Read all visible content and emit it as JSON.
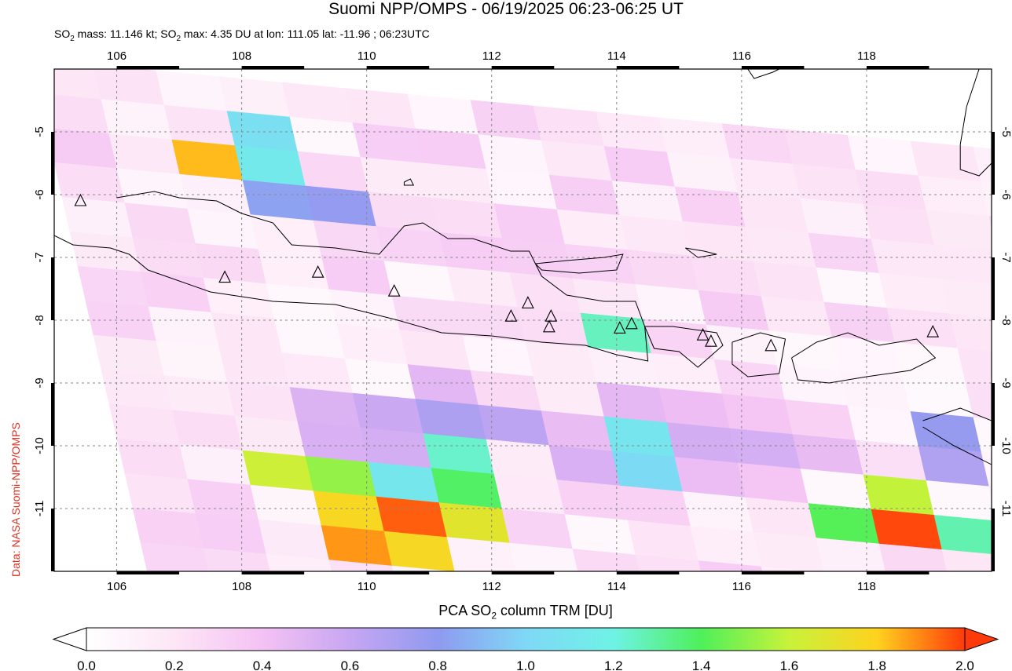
{
  "title": "Suomi NPP/OMPS - 06/19/2025 06:23-06:25 UT",
  "subtitle": {
    "pre": "SO",
    "sub1": "2",
    "mid": " mass: 11.146 kt; SO",
    "sub2": "2",
    "post": " max: 4.35 DU at lon: 111.05 lat: -11.96 ; 06:23UTC"
  },
  "side_label": "Data: NASA Suomi-NPP/OMPS",
  "colorbar": {
    "title_pre": "PCA SO",
    "title_sub": "2",
    "title_post": " column TRM [DU]",
    "min": 0.0,
    "max": 2.0,
    "tick_labels": [
      "0.0",
      "0.2",
      "0.4",
      "0.6",
      "0.8",
      "1.0",
      "1.2",
      "1.4",
      "1.6",
      "1.8",
      "2.0"
    ],
    "colors": [
      "#ffffff",
      "#fde6f6",
      "#f4c2f4",
      "#c7a6f2",
      "#8f9af0",
      "#7fd8f6",
      "#6ff2e6",
      "#4ef05a",
      "#c8f23a",
      "#ffd21e",
      "#ff3a0a"
    ]
  },
  "map": {
    "lon_range": [
      105.0,
      120.0
    ],
    "lat_range": [
      -12.0,
      -4.0
    ],
    "lon_ticks": [
      "106",
      "108",
      "110",
      "112",
      "114",
      "116",
      "118"
    ],
    "lat_ticks": [
      "-5",
      "-6",
      "-7",
      "-8",
      "-9",
      "-10",
      "-11"
    ],
    "coastline_color": "#000000",
    "grid_color": "#888888",
    "volcanoes": [
      {
        "lon": 105.42,
        "lat": -6.1
      },
      {
        "lon": 107.73,
        "lat": -7.32
      },
      {
        "lon": 109.22,
        "lat": -7.24
      },
      {
        "lon": 110.44,
        "lat": -7.54
      },
      {
        "lon": 112.31,
        "lat": -7.94
      },
      {
        "lon": 112.58,
        "lat": -7.73
      },
      {
        "lon": 112.95,
        "lat": -7.94
      },
      {
        "lon": 112.92,
        "lat": -8.11
      },
      {
        "lon": 114.05,
        "lat": -8.13
      },
      {
        "lon": 114.24,
        "lat": -8.06
      },
      {
        "lon": 115.38,
        "lat": -8.24
      },
      {
        "lon": 115.51,
        "lat": -8.34
      },
      {
        "lon": 116.47,
        "lat": -8.41
      },
      {
        "lon": 119.06,
        "lat": -8.19
      }
    ]
  }
}
